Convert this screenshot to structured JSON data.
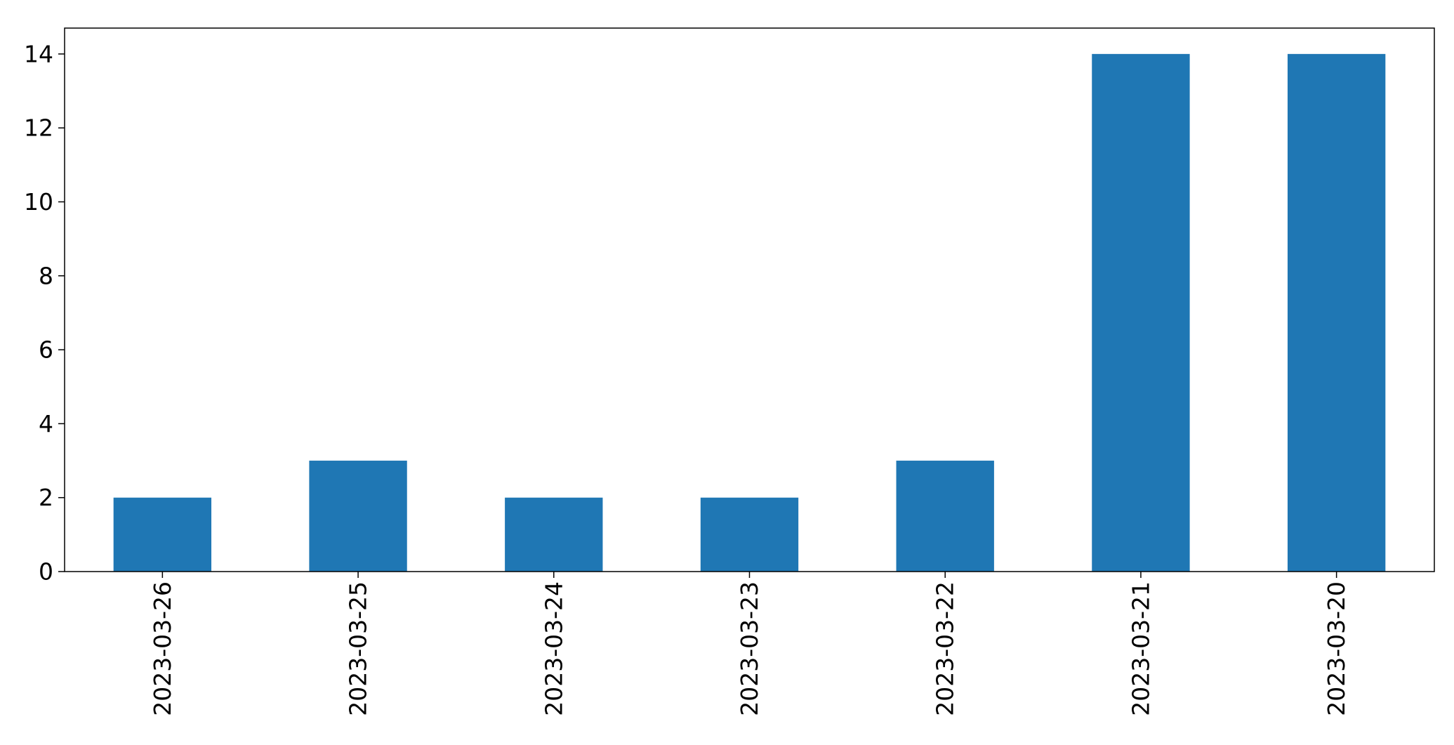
{
  "chart_data": {
    "type": "bar",
    "categories": [
      "2023-03-26",
      "2023-03-25",
      "2023-03-24",
      "2023-03-23",
      "2023-03-22",
      "2023-03-21",
      "2023-03-20"
    ],
    "values": [
      2,
      3,
      2,
      2,
      3,
      14,
      14
    ],
    "yticks": [
      0,
      2,
      4,
      6,
      8,
      10,
      12,
      14
    ],
    "ylim": [
      0,
      14.7
    ],
    "title": "",
    "xlabel": "",
    "ylabel": "",
    "grid": false,
    "legend": "none",
    "colors": {
      "bar": "#1f77b4",
      "axis": "#000000",
      "background": "#ffffff"
    }
  }
}
